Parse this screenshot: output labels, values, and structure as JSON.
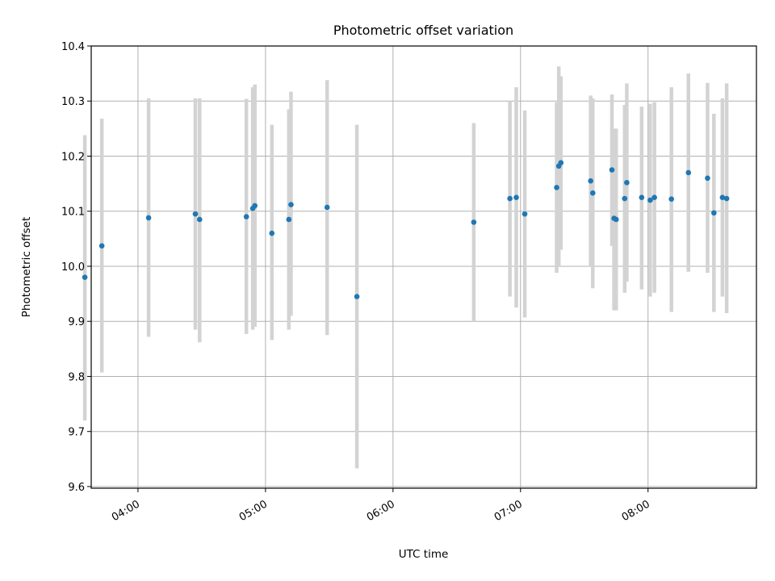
{
  "chart_data": {
    "type": "scatter",
    "title": "Photometric offset variation",
    "xlabel": "UTC time",
    "ylabel": "Photometric offset",
    "xlim": [
      "03:38",
      "08:51"
    ],
    "ylim": [
      9.597,
      10.4
    ],
    "xticks": [
      "04:00",
      "05:00",
      "06:00",
      "07:00",
      "08:00"
    ],
    "yticks": [
      9.6,
      9.7,
      9.8,
      9.9,
      10.0,
      10.1,
      10.2,
      10.3,
      10.4
    ],
    "grid": true,
    "series": [
      {
        "marker_color": "#1f77b4",
        "errorbar_color": "#d3d3d3",
        "points": [
          {
            "x": "03:35",
            "y": 9.98,
            "lo": 9.72,
            "hi": 10.238
          },
          {
            "x": "03:43",
            "y": 10.037,
            "lo": 9.807,
            "hi": 10.268
          },
          {
            "x": "04:05",
            "y": 10.088,
            "lo": 9.872,
            "hi": 10.305
          },
          {
            "x": "04:27",
            "y": 10.095,
            "lo": 9.885,
            "hi": 10.305
          },
          {
            "x": "04:29",
            "y": 10.085,
            "lo": 9.862,
            "hi": 10.305
          },
          {
            "x": "04:51",
            "y": 10.09,
            "lo": 9.877,
            "hi": 10.304
          },
          {
            "x": "04:54",
            "y": 10.105,
            "lo": 9.885,
            "hi": 10.325
          },
          {
            "x": "04:55",
            "y": 10.11,
            "lo": 9.89,
            "hi": 10.33
          },
          {
            "x": "05:03",
            "y": 10.06,
            "lo": 9.866,
            "hi": 10.257
          },
          {
            "x": "05:11",
            "y": 10.085,
            "lo": 9.885,
            "hi": 10.285
          },
          {
            "x": "05:12",
            "y": 10.112,
            "lo": 9.91,
            "hi": 10.317
          },
          {
            "x": "05:29",
            "y": 10.107,
            "lo": 9.875,
            "hi": 10.338
          },
          {
            "x": "05:43",
            "y": 9.945,
            "lo": 9.633,
            "hi": 10.257
          },
          {
            "x": "06:38",
            "y": 10.08,
            "lo": 9.9,
            "hi": 10.26
          },
          {
            "x": "06:55",
            "y": 10.123,
            "lo": 9.945,
            "hi": 10.3
          },
          {
            "x": "06:58",
            "y": 10.125,
            "lo": 9.925,
            "hi": 10.325
          },
          {
            "x": "07:02",
            "y": 10.095,
            "lo": 9.907,
            "hi": 10.283
          },
          {
            "x": "07:17",
            "y": 10.143,
            "lo": 9.988,
            "hi": 10.298
          },
          {
            "x": "07:18",
            "y": 10.182,
            "lo": 10.0,
            "hi": 10.363
          },
          {
            "x": "07:19",
            "y": 10.188,
            "lo": 10.03,
            "hi": 10.345
          },
          {
            "x": "07:33",
            "y": 10.155,
            "lo": 10.0,
            "hi": 10.31
          },
          {
            "x": "07:34",
            "y": 10.133,
            "lo": 9.96,
            "hi": 10.305
          },
          {
            "x": "07:43",
            "y": 10.175,
            "lo": 10.037,
            "hi": 10.312
          },
          {
            "x": "07:44",
            "y": 10.087,
            "lo": 9.92,
            "hi": 10.25
          },
          {
            "x": "07:45",
            "y": 10.085,
            "lo": 9.92,
            "hi": 10.25
          },
          {
            "x": "07:49",
            "y": 10.123,
            "lo": 9.952,
            "hi": 10.293
          },
          {
            "x": "07:50",
            "y": 10.152,
            "lo": 9.972,
            "hi": 10.332
          },
          {
            "x": "07:57",
            "y": 10.125,
            "lo": 9.958,
            "hi": 10.29
          },
          {
            "x": "08:01",
            "y": 10.12,
            "lo": 9.945,
            "hi": 10.295
          },
          {
            "x": "08:03",
            "y": 10.125,
            "lo": 9.952,
            "hi": 10.298
          },
          {
            "x": "08:11",
            "y": 10.122,
            "lo": 9.917,
            "hi": 10.325
          },
          {
            "x": "08:19",
            "y": 10.17,
            "lo": 9.99,
            "hi": 10.35
          },
          {
            "x": "08:28",
            "y": 10.16,
            "lo": 9.988,
            "hi": 10.333
          },
          {
            "x": "08:31",
            "y": 10.097,
            "lo": 9.917,
            "hi": 10.277
          },
          {
            "x": "08:35",
            "y": 10.125,
            "lo": 9.945,
            "hi": 10.305
          },
          {
            "x": "08:37",
            "y": 10.123,
            "lo": 9.915,
            "hi": 10.332
          }
        ]
      }
    ]
  }
}
